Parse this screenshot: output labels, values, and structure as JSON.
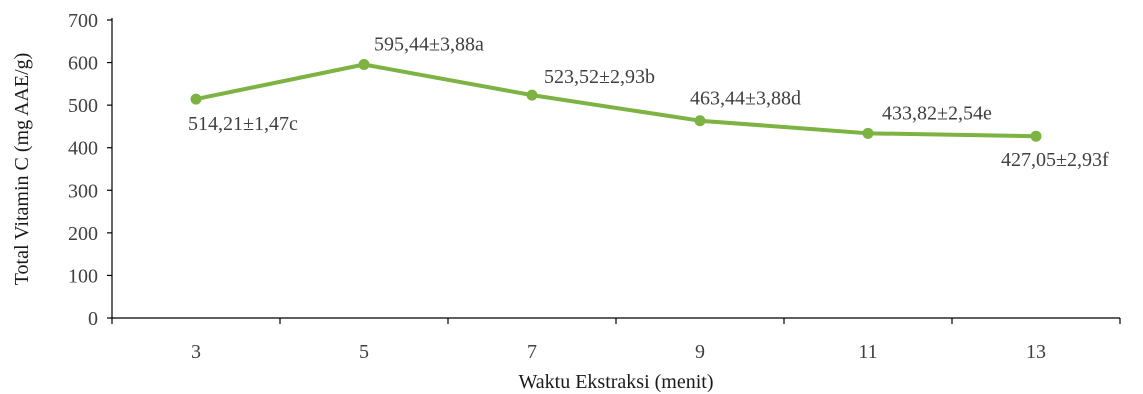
{
  "chart_data": {
    "type": "line",
    "title": "",
    "xlabel": "Waktu Ekstraksi (menit)",
    "ylabel": "Total Vitamin C (mg AAE/g)",
    "ylim": [
      0,
      700
    ],
    "yticks": [
      0,
      100,
      200,
      300,
      400,
      500,
      600,
      700
    ],
    "categories": [
      "3",
      "5",
      "7",
      "9",
      "11",
      "13"
    ],
    "series": [
      {
        "values": [
          514.21,
          595.44,
          523.52,
          463.44,
          433.82,
          427.05
        ],
        "labels": [
          "514,21±1,47c",
          "595,44±3,88a",
          "523,52±2,93b",
          "463,44±3,88d",
          "433,82±2,54e",
          "427,05±2,93f"
        ],
        "color": "#7cb342"
      }
    ],
    "grid": false,
    "legend": "none"
  }
}
